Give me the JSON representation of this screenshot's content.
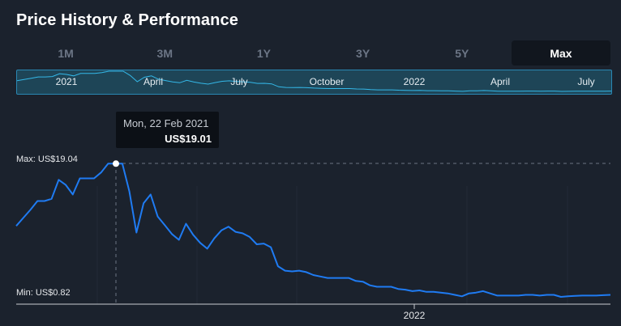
{
  "header": {
    "title": "Price History & Performance"
  },
  "range_tabs": [
    {
      "label": "1M",
      "active": false
    },
    {
      "label": "3M",
      "active": false
    },
    {
      "label": "1Y",
      "active": false
    },
    {
      "label": "3Y",
      "active": false
    },
    {
      "label": "5Y",
      "active": false
    },
    {
      "label": "Max",
      "active": true
    }
  ],
  "navigator": {
    "labels": [
      "2021",
      "April",
      "July",
      "October",
      "2022",
      "April",
      "July"
    ]
  },
  "tooltip": {
    "date": "Mon, 22 Feb 2021",
    "price": "US$19.01"
  },
  "levels": {
    "max_label": "Max: US$19.04",
    "min_label": "Min: US$0.82"
  },
  "colors": {
    "line": "#1f7bf2",
    "navigator_line": "#34b8e8",
    "background": "#1b222d"
  },
  "chart_data": {
    "type": "line",
    "series": [
      {
        "values": [
          10.5,
          11.6,
          12.7,
          13.9,
          13.9,
          14.2,
          16.8,
          16.1,
          14.8,
          17.0,
          17.0,
          17.0,
          17.8,
          19.01,
          19.01,
          19.01,
          15.2,
          9.6,
          13.6,
          14.8,
          11.8,
          10.6,
          9.4,
          8.6,
          10.8,
          9.3,
          8.2,
          7.4,
          8.8,
          9.9,
          10.4,
          9.7,
          9.5,
          9.0,
          8.0,
          8.1,
          7.6,
          5.0,
          4.4,
          4.3,
          4.4,
          4.2,
          3.8,
          3.6,
          3.4,
          3.4,
          3.4,
          3.4,
          3.0,
          2.9,
          2.4,
          2.2,
          2.2,
          2.2,
          1.9,
          1.8,
          1.6,
          1.7,
          1.5,
          1.5,
          1.4,
          1.3,
          1.1,
          0.9,
          1.3,
          1.4,
          1.6,
          1.3,
          1.0,
          1.0,
          1.0,
          1.0,
          1.1,
          1.1,
          1.0,
          1.1,
          1.1,
          0.82,
          0.9,
          0.95,
          1.0,
          1.0,
          1.0,
          1.05,
          1.1
        ]
      }
    ],
    "x_ticks": [
      "2022"
    ],
    "max": 19.04,
    "min": 0.82,
    "highlight": {
      "date": "Mon, 22 Feb 2021",
      "value": 19.01
    },
    "grid": false
  }
}
